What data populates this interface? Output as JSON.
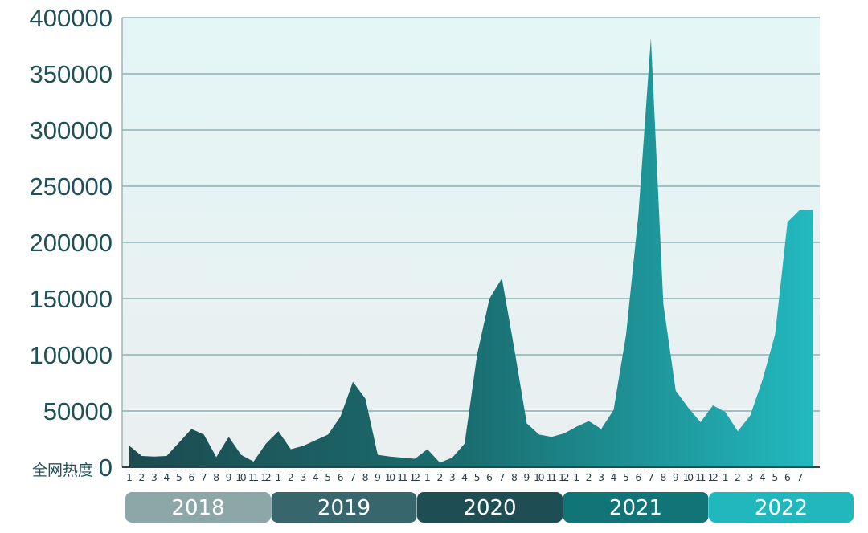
{
  "chart_data": {
    "type": "area",
    "y_axis_title": "全网热度",
    "ylim": [
      0,
      400000
    ],
    "y_ticks": [
      "0",
      "50000",
      "100000",
      "150000",
      "200000",
      "250000",
      "300000",
      "350000",
      "400000"
    ],
    "grid": true,
    "years": [
      {
        "label": "2018",
        "months": 12,
        "color": "#8da6a8"
      },
      {
        "label": "2019",
        "months": 12,
        "color": "#37676c"
      },
      {
        "label": "2020",
        "months": 12,
        "color": "#1e4e53"
      },
      {
        "label": "2021",
        "months": 12,
        "color": "#117577"
      },
      {
        "label": "2022",
        "months": 7,
        "color": "#20b8bd"
      }
    ],
    "month_labels": [
      "1",
      "2",
      "3",
      "4",
      "5",
      "6",
      "7",
      "8",
      "9",
      "10",
      "11",
      "12",
      "1",
      "2",
      "3",
      "4",
      "5",
      "6",
      "7",
      "8",
      "9",
      "10",
      "11",
      "12",
      "1",
      "2",
      "3",
      "4",
      "5",
      "6",
      "7",
      "8",
      "9",
      "10",
      "11",
      "12",
      "1",
      "2",
      "3",
      "4",
      "5",
      "6",
      "7",
      "8",
      "9",
      "10",
      "11",
      "12",
      "1",
      "2",
      "3",
      "4",
      "5",
      "6",
      "7"
    ],
    "values": [
      19000,
      10000,
      9500,
      10000,
      22000,
      34000,
      29000,
      9000,
      27000,
      11000,
      5000,
      21000,
      32000,
      16000,
      19000,
      24000,
      29000,
      45000,
      76000,
      61000,
      11000,
      9500,
      8500,
      7500,
      16000,
      4000,
      8500,
      21000,
      100000,
      150000,
      168000,
      105000,
      39000,
      29000,
      27000,
      30000,
      36000,
      41000,
      34000,
      51000,
      118000,
      225000,
      382000,
      145000,
      68000,
      53000,
      40000,
      55000,
      49000,
      32000,
      46000,
      78000,
      118000,
      218000,
      229000
    ],
    "last_value_extends_to_edge": true,
    "gradient_colors": [
      "#1d4b50",
      "#1a6e70",
      "#22b9bf"
    ]
  }
}
